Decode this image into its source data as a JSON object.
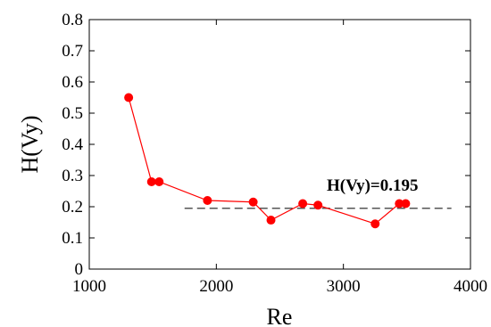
{
  "chart_data": {
    "type": "line",
    "xlabel": "Re",
    "ylabel": "H(Vy)",
    "xlim": [
      1000,
      4000
    ],
    "ylim": [
      0,
      0.8
    ],
    "xticks": [
      "1000",
      "2000",
      "3000",
      "4000"
    ],
    "yticks": [
      "0",
      "0.1",
      "0.2",
      "0.3",
      "0.4",
      "0.5",
      "0.6",
      "0.7",
      "0.8"
    ],
    "grid": false,
    "series": [
      {
        "color": "#ff0000",
        "marker": "circle",
        "x": [
          1310,
          1490,
          1550,
          1930,
          2290,
          2430,
          2680,
          2800,
          3250,
          3440,
          3490
        ],
        "y": [
          0.55,
          0.28,
          0.28,
          0.22,
          0.215,
          0.157,
          0.21,
          0.205,
          0.145,
          0.21,
          0.21
        ]
      }
    ],
    "reference_line": {
      "y": 0.195,
      "x_range": [
        1750,
        3850
      ],
      "style": "dashed",
      "color": "#555555"
    },
    "annotation": "H(Vy)=0.195"
  }
}
